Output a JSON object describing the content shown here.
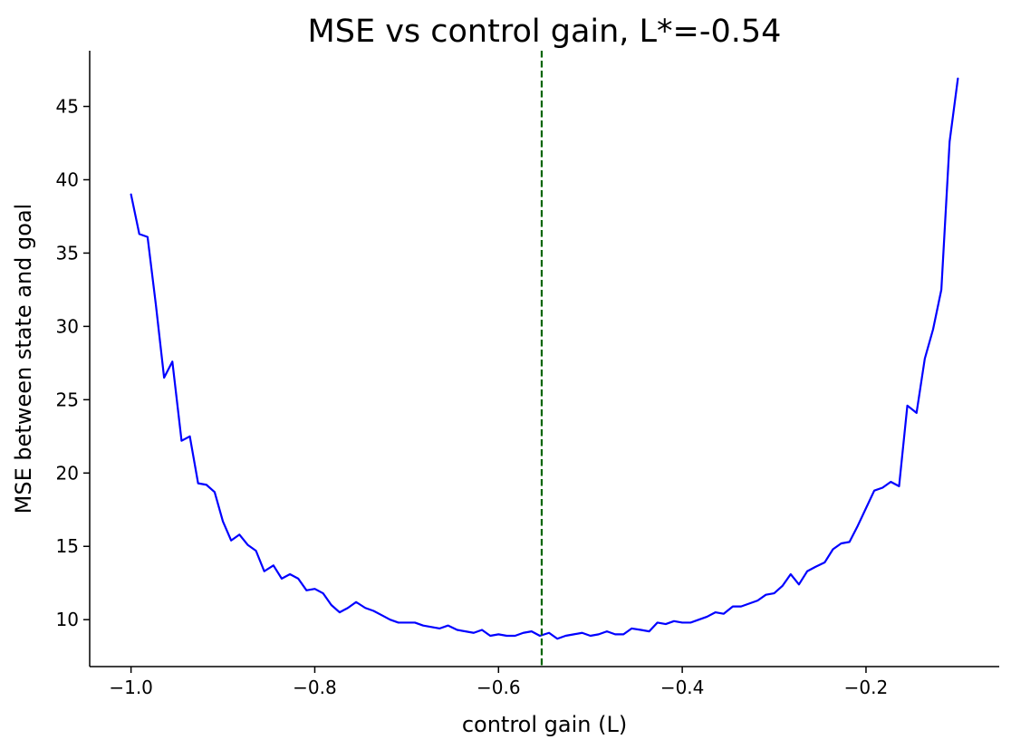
{
  "chart_data": {
    "type": "line",
    "title": "MSE vs control gain, L*=-0.54",
    "xlabel": "control gain (L)",
    "ylabel": "MSE between state and goal",
    "xlim": [
      -1.045,
      -0.055
    ],
    "ylim": [
      6.8,
      48.8
    ],
    "xticks": [
      -1.0,
      -0.8,
      -0.6,
      -0.4,
      -0.2
    ],
    "xtick_labels": [
      "−1.0",
      "−0.8",
      "−0.6",
      "−0.4",
      "−0.2"
    ],
    "yticks": [
      10,
      15,
      20,
      25,
      30,
      35,
      40,
      45
    ],
    "ytick_labels": [
      "10",
      "15",
      "20",
      "25",
      "30",
      "35",
      "40",
      "45"
    ],
    "grid": false,
    "colors": {
      "line": "#0000ff",
      "marker_line": "#006400"
    },
    "vline": {
      "x": -0.553,
      "style": "dashed"
    },
    "series": [
      {
        "x": [
          -1.0,
          -0.991,
          -0.982,
          -0.973,
          -0.964,
          -0.955,
          -0.945,
          -0.936,
          -0.927,
          -0.918,
          -0.909,
          -0.9,
          -0.891,
          -0.882,
          -0.873,
          -0.864,
          -0.855,
          -0.845,
          -0.836,
          -0.827,
          -0.818,
          -0.809,
          -0.8,
          -0.791,
          -0.782,
          -0.773,
          -0.764,
          -0.755,
          -0.745,
          -0.736,
          -0.727,
          -0.718,
          -0.709,
          -0.7,
          -0.691,
          -0.682,
          -0.673,
          -0.664,
          -0.655,
          -0.645,
          -0.636,
          -0.627,
          -0.618,
          -0.609,
          -0.6,
          -0.591,
          -0.582,
          -0.573,
          -0.564,
          -0.555,
          -0.545,
          -0.536,
          -0.527,
          -0.518,
          -0.509,
          -0.5,
          -0.491,
          -0.482,
          -0.473,
          -0.464,
          -0.455,
          -0.445,
          -0.436,
          -0.427,
          -0.418,
          -0.409,
          -0.4,
          -0.391,
          -0.382,
          -0.373,
          -0.364,
          -0.355,
          -0.345,
          -0.336,
          -0.327,
          -0.318,
          -0.309,
          -0.3,
          -0.291,
          -0.282,
          -0.273,
          -0.264,
          -0.255,
          -0.245,
          -0.236,
          -0.227,
          -0.218,
          -0.209,
          -0.2,
          -0.191,
          -0.182,
          -0.173,
          -0.164,
          -0.155,
          -0.145,
          -0.136,
          -0.127,
          -0.118,
          -0.109,
          -0.1
        ],
        "values": [
          39.0,
          36.3,
          36.1,
          31.5,
          26.5,
          27.6,
          22.2,
          22.5,
          19.3,
          19.2,
          18.7,
          16.7,
          15.4,
          15.8,
          15.1,
          14.7,
          13.3,
          13.7,
          12.8,
          13.1,
          12.8,
          12.0,
          12.1,
          11.8,
          11.0,
          10.5,
          10.8,
          11.2,
          10.8,
          10.6,
          10.3,
          10.0,
          9.8,
          9.8,
          9.8,
          9.6,
          9.5,
          9.4,
          9.6,
          9.3,
          9.2,
          9.1,
          9.3,
          8.9,
          9.0,
          8.9,
          8.9,
          9.1,
          9.2,
          8.9,
          9.1,
          8.7,
          8.9,
          9.0,
          9.1,
          8.9,
          9.0,
          9.2,
          9.0,
          9.0,
          9.4,
          9.3,
          9.2,
          9.8,
          9.7,
          9.9,
          9.8,
          9.8,
          10.0,
          10.2,
          10.5,
          10.4,
          10.9,
          10.9,
          11.1,
          11.3,
          11.7,
          11.8,
          12.3,
          13.1,
          12.4,
          13.3,
          13.6,
          13.9,
          14.8,
          15.2,
          15.3,
          16.4,
          17.6,
          18.8,
          19.0,
          19.4,
          19.1,
          24.6,
          24.1,
          27.8,
          29.8,
          32.5,
          42.6,
          46.9
        ]
      }
    ]
  }
}
